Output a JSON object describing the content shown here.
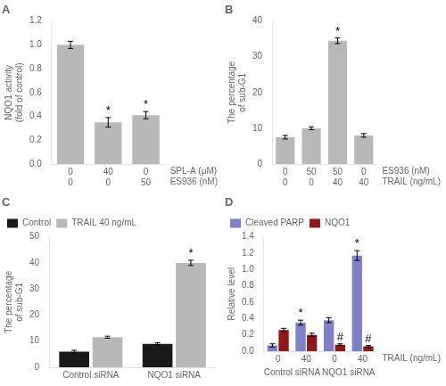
{
  "chart_data": [
    {
      "type": "bar",
      "title": "A",
      "categories": [
        [
          "0",
          "0"
        ],
        [
          "40",
          "0"
        ],
        [
          "0",
          "50"
        ]
      ],
      "row_labels": [
        "SPL-A (μM)",
        "ES936 (nM)"
      ],
      "values": [
        1.0,
        0.35,
        0.41
      ],
      "errors": [
        0.03,
        0.04,
        0.03
      ],
      "color": "#b8b8b8",
      "ylabel": "NQO1 activity\n(fold of control)",
      "ylim": [
        0,
        1.2
      ],
      "yticks": [
        {
          "value": 0,
          "label": "0.0"
        },
        0.2,
        0.4,
        0.6,
        0.8,
        {
          "value": 1.0,
          "label": "1.0"
        },
        1.2
      ],
      "annotations": [
        {
          "text": "*",
          "index": 1
        },
        {
          "text": "*",
          "index": 2
        }
      ],
      "grid": false,
      "legend": false
    },
    {
      "type": "bar",
      "title": "B",
      "categories": [
        [
          "0",
          "0"
        ],
        [
          "50",
          "0"
        ],
        [
          "50",
          "40"
        ],
        [
          "0",
          "40"
        ]
      ],
      "row_labels": [
        "ES936 (nM)",
        "TRAIL (ng/mL)"
      ],
      "values": [
        7.5,
        10.0,
        34.5,
        8.0
      ],
      "errors": [
        0.5,
        0.4,
        0.8,
        0.5
      ],
      "color": "#b8b8b8",
      "ylabel": "The percentage\nof sub-G1",
      "ylim": [
        0,
        40
      ],
      "yticks": [
        0,
        10,
        20,
        30,
        40
      ],
      "annotations": [
        {
          "text": "*",
          "index": 2
        }
      ],
      "grid": false,
      "legend": false
    },
    {
      "type": "bar",
      "title": "C",
      "categories": [
        "Control siRNA",
        "NQO1 siRNA"
      ],
      "series": [
        {
          "name": "Control",
          "color": "#1a1a1a",
          "values": [
            6.0,
            9.0
          ],
          "errors": [
            0.5,
            0.4
          ]
        },
        {
          "name": "TRAIL 40 ng/mL",
          "color": "#b8b8b8",
          "values": [
            11.5,
            40.0
          ],
          "errors": [
            0.4,
            1.0
          ]
        }
      ],
      "ylabel": "The percentage\nof sub-G1",
      "ylim": [
        0,
        50
      ],
      "yticks": [
        0,
        10,
        20,
        30,
        40,
        50
      ],
      "annotations": [
        {
          "text": "*",
          "series": 1,
          "index": 1
        }
      ],
      "grid": false,
      "legend": "upper left"
    },
    {
      "type": "bar",
      "title": "D",
      "categories": [
        "0",
        "40",
        "0",
        "40"
      ],
      "group_labels": [
        "Control siRNA",
        "NQO1 siRNA"
      ],
      "row_labels": [
        "TRAIL (ng/mL)"
      ],
      "series": [
        {
          "name": "Cleaved PARP",
          "color": "#8080c8",
          "values": [
            0.07,
            0.35,
            0.38,
            1.17
          ],
          "errors": [
            0.02,
            0.03,
            0.03,
            0.06
          ]
        },
        {
          "name": "NQO1",
          "color": "#8b1a1a",
          "values": [
            0.26,
            0.2,
            0.08,
            0.06
          ],
          "errors": [
            0.02,
            0.02,
            0.01,
            0.01
          ]
        }
      ],
      "ylabel": "Relative level",
      "ylim": [
        0,
        1.4
      ],
      "yticks": [
        {
          "value": 0,
          "label": "0.0"
        },
        0.2,
        0.4,
        0.6,
        0.8,
        {
          "value": 1.0,
          "label": "1.0"
        },
        1.2,
        1.4
      ],
      "annotations": [
        {
          "text": "*",
          "series": 0,
          "index": 1
        },
        {
          "text": "*",
          "series": 0,
          "index": 3
        },
        {
          "text": "#",
          "series": 1,
          "index": 2
        },
        {
          "text": "#",
          "series": 1,
          "index": 3
        }
      ],
      "grid": false,
      "legend": "upper left"
    }
  ]
}
